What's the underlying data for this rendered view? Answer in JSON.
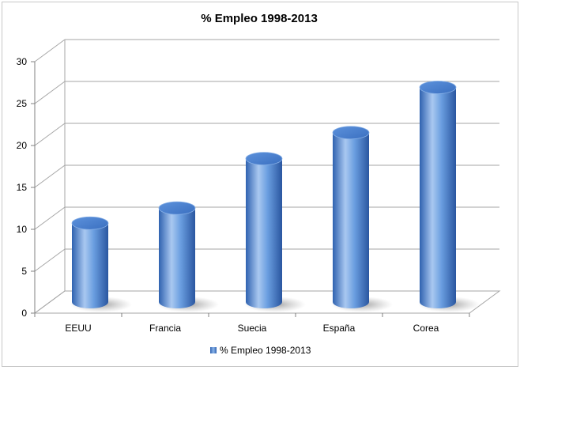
{
  "chart_data": {
    "type": "bar",
    "title": "% Empleo 1998-2013",
    "categories": [
      "EEUU",
      "Francia",
      "Suecia",
      "España",
      "Corea"
    ],
    "series": [
      {
        "name": "% Empleo 1998-2013",
        "values": [
          9.6,
          11.4,
          17.3,
          20.4,
          25.8
        ]
      }
    ],
    "ylim": [
      0,
      30
    ],
    "yticks": [
      0,
      5,
      10,
      15,
      20,
      25,
      30
    ],
    "grid": true,
    "legend_position": "bottom",
    "bar_shape": "cylinder-3d",
    "colors": {
      "bar": "#4f86d2",
      "bar_light": "#b4d0f3",
      "bar_dark": "#2a5aa6",
      "grid": "#a6a6a6"
    }
  }
}
